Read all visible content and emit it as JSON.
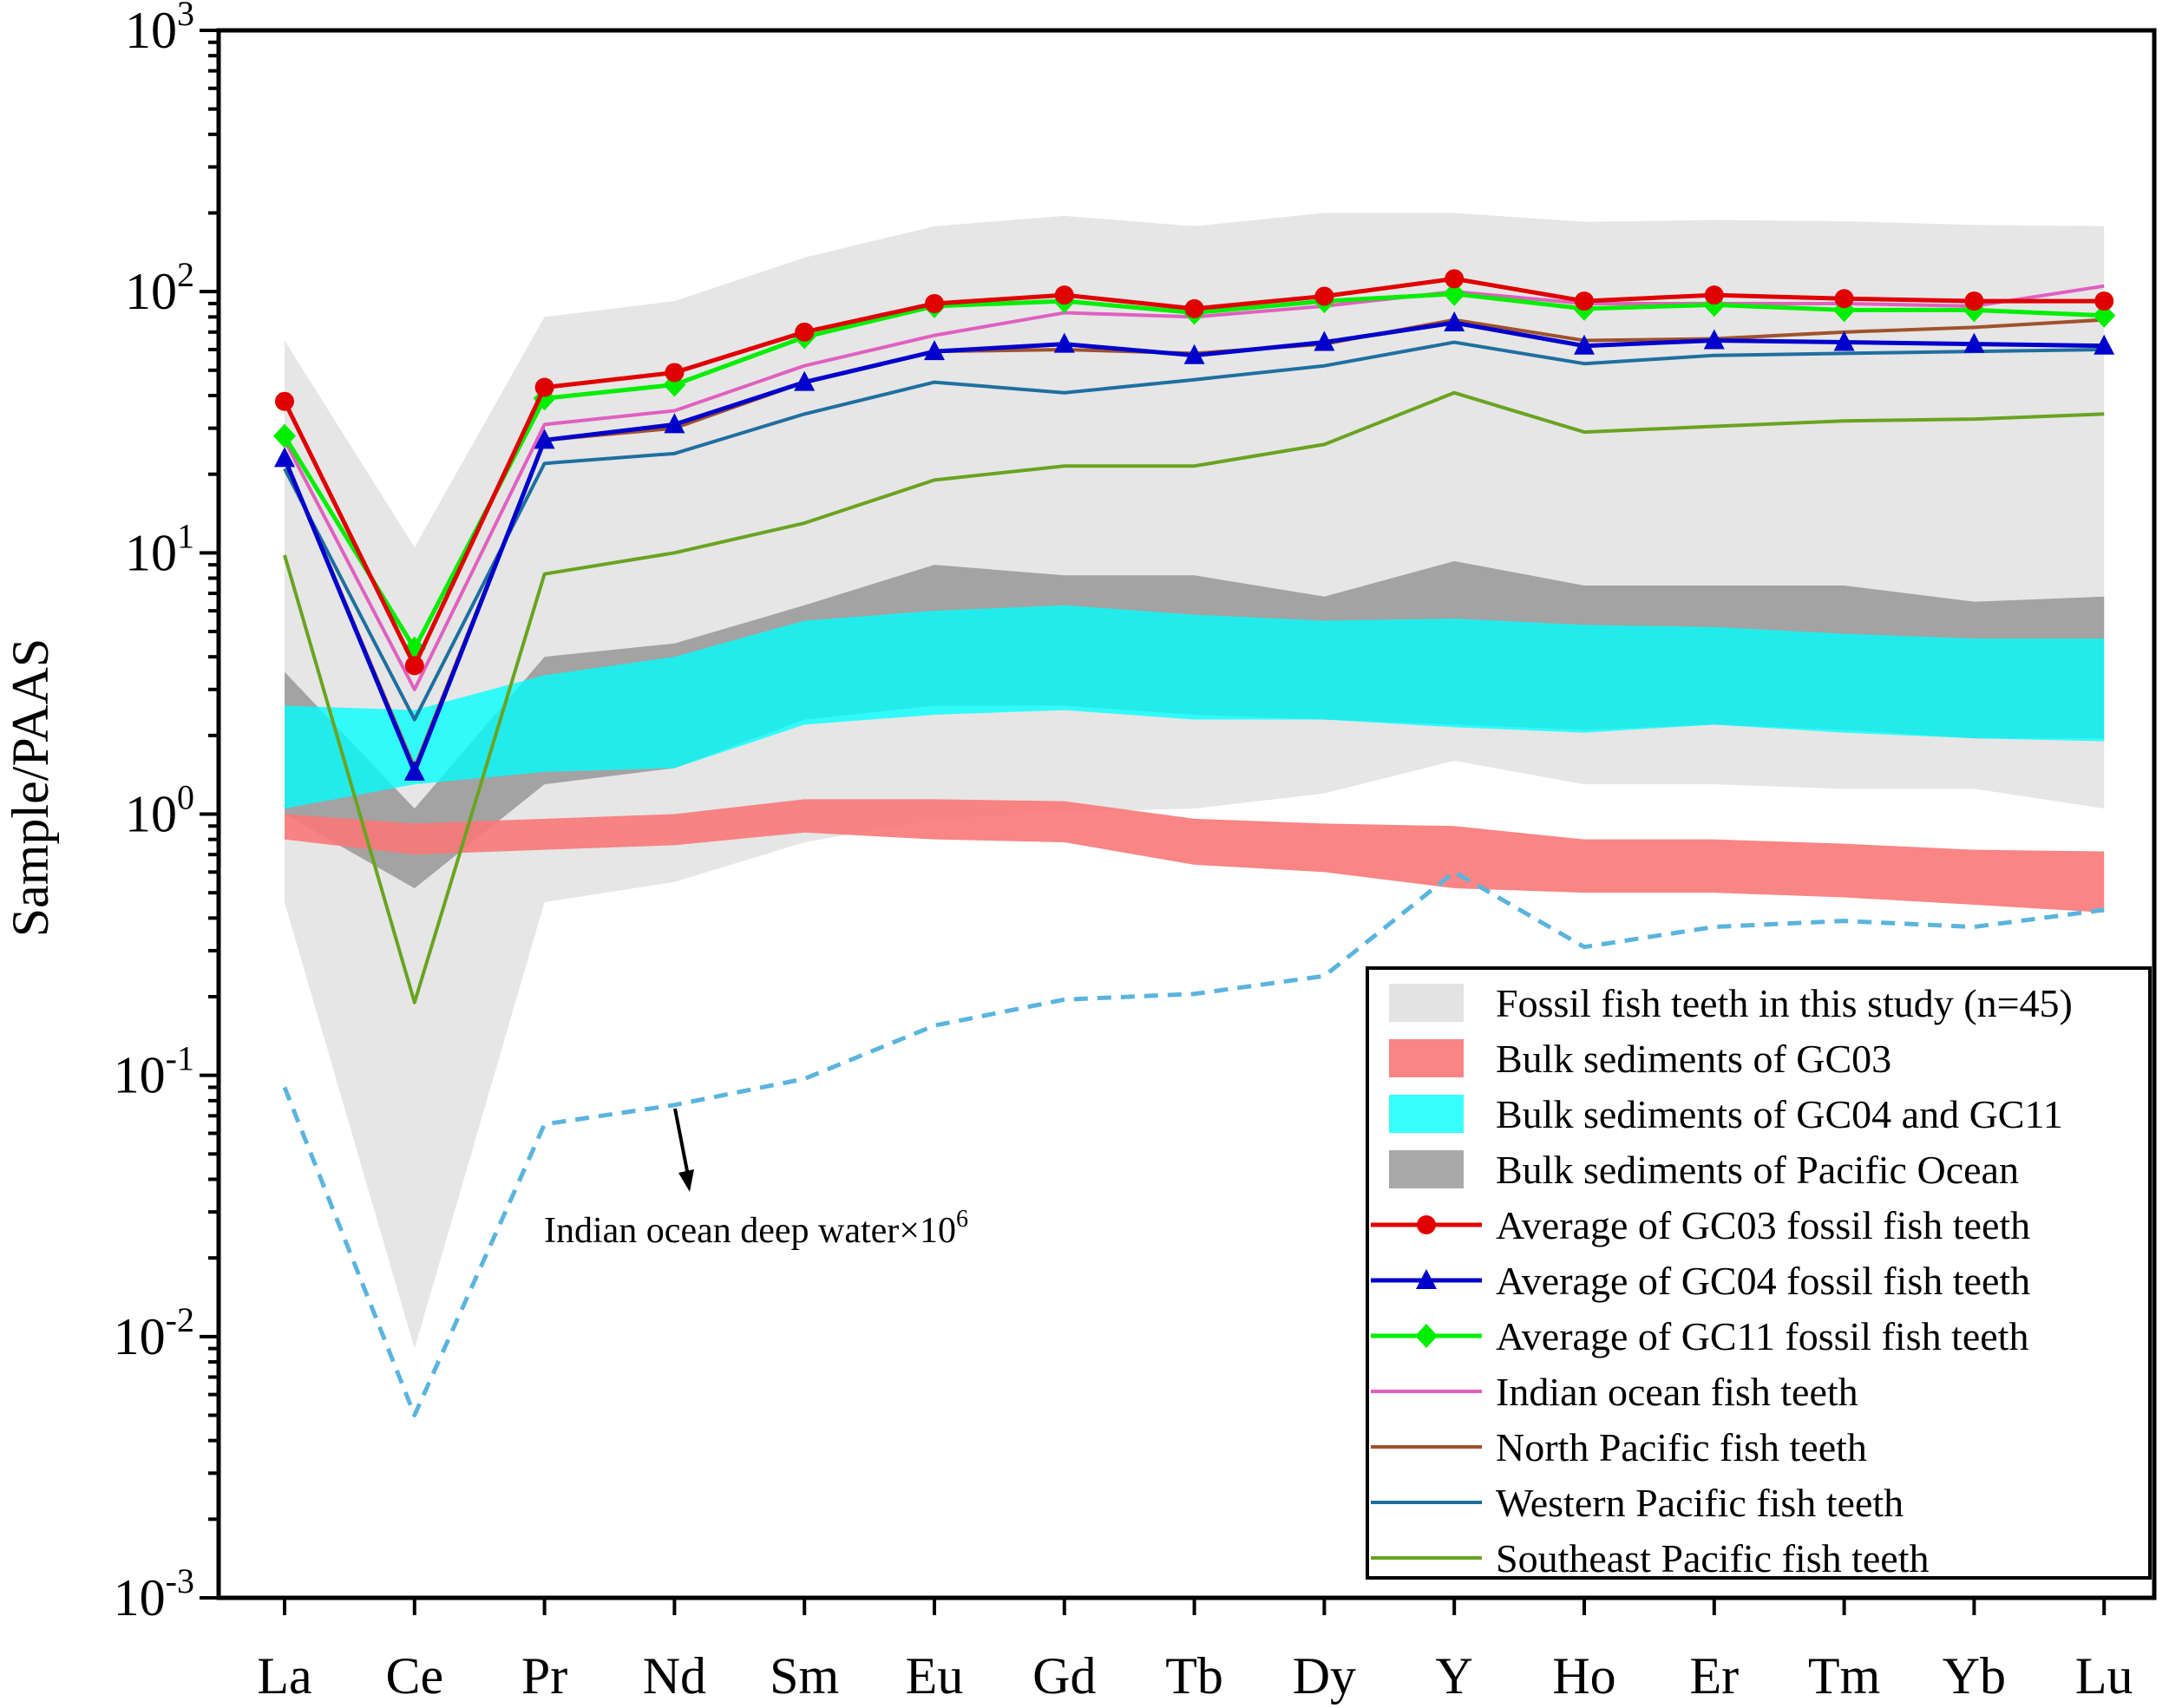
{
  "chart_data": {
    "type": "line",
    "scale": "log",
    "xlabel": "",
    "ylabel": "Sample/PAAS",
    "ylim": [
      0.001,
      1000
    ],
    "yticks": [
      {
        "value": 0.001,
        "base": "10",
        "exp": "-3"
      },
      {
        "value": 0.01,
        "base": "10",
        "exp": "-2"
      },
      {
        "value": 0.1,
        "base": "10",
        "exp": "-1"
      },
      {
        "value": 1,
        "base": "10",
        "exp": "0"
      },
      {
        "value": 10,
        "base": "10",
        "exp": "1"
      },
      {
        "value": 100,
        "base": "10",
        "exp": "2"
      },
      {
        "value": 1000,
        "base": "10",
        "exp": "3"
      }
    ],
    "categories": [
      "La",
      "Ce",
      "Pr",
      "Nd",
      "Sm",
      "Eu",
      "Gd",
      "Tb",
      "Dy",
      "Y",
      "Ho",
      "Er",
      "Tm",
      "Yb",
      "Lu"
    ],
    "bands": [
      {
        "key": "fossil",
        "name": "Fossil fish teeth in this study (n=45)",
        "color": "#d9d9d9",
        "opacity": 0.65,
        "upper": [
          65,
          10.5,
          80,
          92,
          135,
          178,
          195,
          178,
          200,
          200,
          185,
          188,
          186,
          180,
          178
        ],
        "lower": [
          0.46,
          0.009,
          0.46,
          0.55,
          0.78,
          0.95,
          1.02,
          1.05,
          1.2,
          1.6,
          1.3,
          1.3,
          1.25,
          1.25,
          1.05
        ]
      },
      {
        "key": "pacific",
        "name": "Bulk sediments of Pacific Ocean",
        "color": "#8c8c8c",
        "opacity": 0.75,
        "upper": [
          3.5,
          1.05,
          4.0,
          4.5,
          6.3,
          9.0,
          8.2,
          8.2,
          6.8,
          9.3,
          7.5,
          7.5,
          7.5,
          6.5,
          6.8
        ],
        "lower": [
          1.0,
          0.52,
          1.3,
          1.5,
          2.3,
          2.6,
          2.6,
          2.4,
          2.3,
          2.2,
          2.1,
          2.2,
          2.1,
          1.95,
          1.95
        ]
      },
      {
        "key": "gc04gc11",
        "name": "Bulk sediments of GC04 and GC11",
        "color": "#00ffff",
        "opacity": 0.78,
        "upper": [
          2.6,
          2.5,
          3.4,
          4.0,
          5.5,
          6.0,
          6.3,
          5.8,
          5.5,
          5.6,
          5.3,
          5.2,
          4.9,
          4.7,
          4.7
        ],
        "lower": [
          1.05,
          1.3,
          1.45,
          1.5,
          2.2,
          2.4,
          2.5,
          2.3,
          2.3,
          2.15,
          2.05,
          2.2,
          2.05,
          1.95,
          1.9
        ]
      },
      {
        "key": "gc03",
        "name": "Bulk sediments of GC03",
        "color": "#f87878",
        "opacity": 0.9,
        "upper": [
          1.0,
          0.92,
          0.96,
          1.0,
          1.14,
          1.14,
          1.12,
          0.96,
          0.92,
          0.9,
          0.8,
          0.8,
          0.77,
          0.73,
          0.72
        ],
        "lower": [
          0.8,
          0.7,
          0.73,
          0.76,
          0.85,
          0.8,
          0.78,
          0.64,
          0.6,
          0.52,
          0.5,
          0.5,
          0.48,
          0.45,
          0.42
        ]
      }
    ],
    "series": [
      {
        "key": "gc03avg",
        "name": "Average of GC03 fossil fish teeth",
        "color": "#e00000",
        "marker": "circle",
        "width": 5,
        "values": [
          38,
          3.7,
          43,
          49,
          70,
          90,
          97,
          86,
          96,
          112,
          92,
          97,
          94,
          92,
          92
        ]
      },
      {
        "key": "gc04avg",
        "name": "Average of GC04 fossil fish teeth",
        "color": "#0000cc",
        "marker": "triangle",
        "width": 5,
        "values": [
          23,
          1.45,
          27,
          31,
          45,
          59,
          63,
          57,
          64,
          76,
          62,
          65,
          64,
          63,
          62
        ]
      },
      {
        "key": "gc11avg",
        "name": "Average of GC11 fossil fish teeth",
        "color": "#00ee00",
        "marker": "diamond",
        "width": 5,
        "values": [
          28,
          4.3,
          39,
          44,
          67,
          88,
          92,
          83,
          92,
          98,
          86,
          89,
          85,
          85,
          81
        ]
      },
      {
        "key": "indian",
        "name": "Indian ocean fish teeth",
        "color": "#e060c0",
        "marker": "none",
        "width": 4,
        "values": [
          27,
          3.0,
          31,
          35,
          52,
          68,
          83,
          80,
          88,
          100,
          90,
          90,
          90,
          88,
          105
        ]
      },
      {
        "key": "npacific",
        "name": "North Pacific fish teeth",
        "color": "#a0522d",
        "marker": "none",
        "width": 4,
        "values": [
          23,
          1.5,
          27,
          30,
          45,
          59,
          60,
          58,
          63,
          78,
          65,
          66,
          70,
          73,
          78
        ]
      },
      {
        "key": "wpacific",
        "name": "Western Pacific fish teeth",
        "color": "#1f6fa0",
        "marker": "none",
        "width": 4,
        "values": [
          21,
          2.3,
          22,
          24,
          34,
          45,
          41,
          46,
          52,
          64,
          53,
          57,
          58,
          59,
          60
        ]
      },
      {
        "key": "sepacific",
        "name": "Southeast Pacific fish teeth",
        "color": "#6aa321",
        "marker": "none",
        "width": 4,
        "values": [
          9.8,
          0.19,
          8.3,
          10,
          13,
          19,
          21.5,
          21.5,
          26,
          41,
          29,
          30.5,
          32,
          32.5,
          34
        ]
      },
      {
        "key": "idw",
        "name": "Indian ocean deep water×10^6",
        "color": "#5ab4de",
        "marker": "none",
        "width": 5,
        "dashed": true,
        "in_legend": false,
        "values": [
          0.09,
          0.005,
          0.065,
          0.077,
          0.097,
          0.155,
          0.195,
          0.205,
          0.24,
          0.6,
          0.31,
          0.37,
          0.39,
          0.37,
          0.43
        ]
      }
    ],
    "annotation": {
      "text": "Indian ocean deep water×10",
      "superscript": "6"
    },
    "legend": {
      "placement": "bottom-right",
      "order": [
        "fossil",
        "gc03",
        "gc04gc11",
        "pacific",
        "gc03avg",
        "gc04avg",
        "gc11avg",
        "indian",
        "npacific",
        "wpacific",
        "sepacific"
      ]
    }
  }
}
